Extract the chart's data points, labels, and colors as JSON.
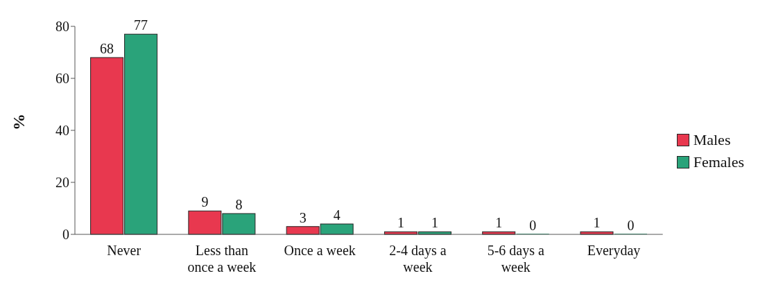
{
  "chart_data": {
    "type": "bar",
    "ylabel": "%",
    "categories": [
      "Never",
      "Less than once a week",
      "Once a week",
      "2-4 days a week",
      "5-6 days a week",
      "Everyday"
    ],
    "series": [
      {
        "name": "Males",
        "color": "#e8384f",
        "values": [
          68,
          9,
          3,
          1,
          1,
          1
        ]
      },
      {
        "name": "Females",
        "color": "#2aa37a",
        "values": [
          77,
          8,
          4,
          1,
          0,
          0
        ]
      }
    ],
    "ylim": [
      0,
      80
    ],
    "yticks": [
      0,
      20,
      40,
      60,
      80
    ],
    "grid": false,
    "legend": "right",
    "data_labels": true
  }
}
